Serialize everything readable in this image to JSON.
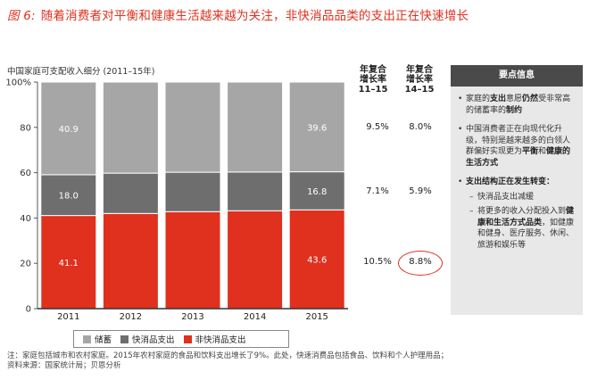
{
  "title": {
    "figure_label": "图 6:",
    "text": "随着消费者对平衡和健康生活越来越为关注，非快消品品类的支出正在快速增长"
  },
  "chart_data": {
    "type": "bar",
    "stacked": true,
    "title": "中国家庭可支配收入细分 (2011–15年)",
    "categories": [
      "2011",
      "2012",
      "2013",
      "2014",
      "2015"
    ],
    "ylim": [
      0,
      100
    ],
    "yticks": [
      "0",
      "20",
      "40",
      "60",
      "80",
      "100%"
    ],
    "series": [
      {
        "name": "非快消品支出",
        "color": "#e0301e",
        "values": [
          41.1,
          42.0,
          42.8,
          43.2,
          43.6
        ],
        "labels": [
          "41.1",
          "",
          "",
          "",
          "43.6"
        ]
      },
      {
        "name": "快消品支出",
        "color": "#6e6e6e",
        "values": [
          18.0,
          17.8,
          17.4,
          17.1,
          16.8
        ],
        "labels": [
          "18.0",
          "",
          "",
          "",
          "16.8"
        ]
      },
      {
        "name": "储蓄",
        "color": "#a6a6a6",
        "values": [
          40.9,
          40.2,
          39.8,
          39.7,
          39.6
        ],
        "labels": [
          "40.9",
          "",
          "",
          "",
          "39.6"
        ]
      }
    ],
    "cagr_headers": [
      "年复合增长率 11–15",
      "年复合增长率 14–15"
    ],
    "cagr": [
      {
        "series": "储蓄",
        "v1115": "9.5%",
        "v1415": "8.0%"
      },
      {
        "series": "快消品支出",
        "v1115": "7.1%",
        "v1415": "5.9%"
      },
      {
        "series": "非快消品支出",
        "v1115": "10.5%",
        "v1415": "8.8%"
      }
    ],
    "legend": [
      "储蓄",
      "快消品支出",
      "非快消品支出"
    ]
  },
  "cagr_header_1": {
    "l1": "年复合",
    "l2": "增长率",
    "l3": "11–15"
  },
  "cagr_header_2": {
    "l1": "年复合",
    "l2": "增长率",
    "l3": "14–15"
  },
  "panel": {
    "title": "要点信息",
    "b1_pre": "家庭的",
    "b1_bold1": "支出",
    "b1_mid": "意愿",
    "b1_bold2": "仍然",
    "b1_post": "受非常高的储蓄率的",
    "b1_bold3": "制约",
    "b2_pre": "中国消费者正在向现代化升级，特别是越来越多的白领人群偏好实现更为",
    "b2_bold1": "平衡",
    "b2_mid": "和",
    "b2_bold2": "健康的生活方式",
    "b3_bold": "支出结构正在发生转变：",
    "s1": "快消品支出减缓",
    "s2_pre": "将更多的收入分配投入到",
    "s2_bold": "健康和生活方式品类",
    "s2_post": "，如健康和健身、医疗服务、休闲、旅游和娱乐等"
  },
  "note": {
    "line1": "注：家庭包括城市和农村家庭。2015年农村家庭的食品和饮料支出增长了9%。此处，快速消费品包括食品、饮料和个人护理用品；",
    "line2": "资料来源：国家统计局；贝恩分析"
  }
}
